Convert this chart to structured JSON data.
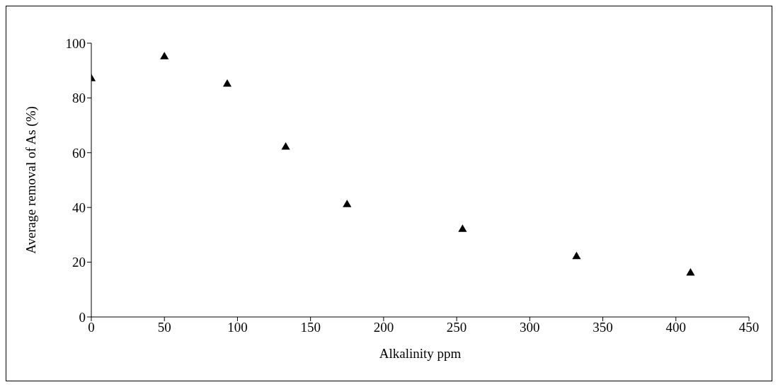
{
  "chart_data": {
    "type": "scatter",
    "xlabel": "Alkalinity ppm",
    "ylabel": "Average removal of As (%)",
    "x": [
      0,
      50,
      93,
      133,
      175,
      254,
      332,
      410
    ],
    "values": [
      87,
      95,
      85,
      62,
      41,
      32,
      22,
      16
    ],
    "color": "#000000",
    "marker": "triangle",
    "xlim": [
      0,
      450
    ],
    "xticks": [
      0,
      50,
      100,
      150,
      200,
      250,
      300,
      350,
      400,
      450
    ],
    "ylim": [
      0,
      100
    ],
    "yticks": [
      0,
      20,
      40,
      60,
      80,
      100
    ],
    "grid": false,
    "legend": false
  }
}
